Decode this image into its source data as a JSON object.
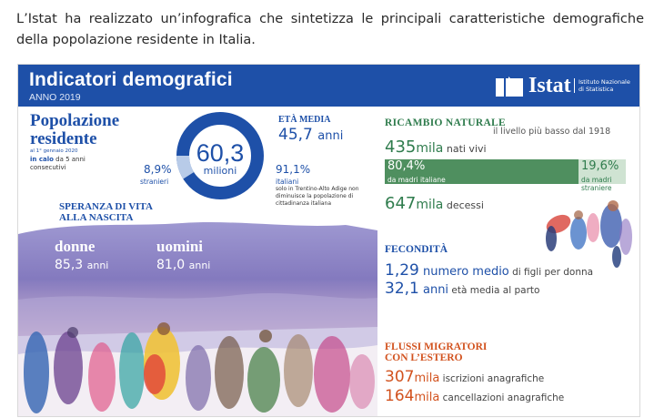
{
  "intro_text": "L’Istat ha realizzato un’infografica che sintetizza le principali caratteristiche demografiche della popolazione residente in Italia.",
  "header": {
    "title": "Indicatori demografici",
    "subtitle": "ANNO 2019",
    "logo_word": "Istat",
    "logo_institute": "Istituto Nazionale di Statistica"
  },
  "popolazione": {
    "title_line1": "Popolazione",
    "title_line2": "residente",
    "date": "al 1° gennaio 2020",
    "calo_bold": "in calo",
    "calo_rest": " da 5 anni consecutivi",
    "value": "60,3",
    "unit": "milioni",
    "stranieri_pct": "8,9%",
    "stranieri_label": "stranieri",
    "italiani_pct": "91,1%",
    "italiani_label": "italiani",
    "italiani_note": "solo in Trentino-Alto Adige non diminuisce la popolazione di cittadinanza italiana",
    "stranieri_share": 0.089
  },
  "eta_media": {
    "label": "ETÀ MEDIA",
    "value": "45,7",
    "unit": "anni"
  },
  "speranza": {
    "title_line1": "SPERANZA DI VITA",
    "title_line2": "ALLA NASCITA",
    "donne_label": "donne",
    "donne_value": "85,3",
    "donne_unit": "anni",
    "uomini_label": "uomini",
    "uomini_value": "81,0",
    "uomini_unit": "anni"
  },
  "ricambio": {
    "title": "RICAMBIO NATURALE",
    "note": "il livello più basso dal 1918",
    "nati_value": "435",
    "nati_unit": "mila",
    "nati_text": " nati vivi",
    "madri_italiane_pct": "80,4%",
    "madri_italiane_label": "da madri italiane",
    "madri_straniere_pct": "19,6%",
    "madri_straniere_label": "da madri straniere",
    "madri_italiane_share": 0.804,
    "decessi_value": "647",
    "decessi_unit": "mila",
    "decessi_text": " decessi"
  },
  "fecondita": {
    "title": "FECONDITÀ",
    "figli_value": "1,29",
    "figli_mid": " numero medio",
    "figli_text": " di figli per donna",
    "eta_value": "32,1",
    "eta_mid": " anni",
    "eta_text": " età media al parto"
  },
  "flussi": {
    "title_line1": "FLUSSI MIGRATORI",
    "title_line2": "CON L’ESTERO",
    "iscrizioni_value": "307",
    "iscrizioni_unit": "mila",
    "iscrizioni_text": " iscrizioni anagrafiche",
    "cancellazioni_value": "164",
    "cancellazioni_unit": "mila",
    "cancellazioni_text": " cancellazioni anagrafiche"
  },
  "colors": {
    "brand_blue": "#1e50a8",
    "green": "#2f7c4d",
    "orange": "#d2521e"
  }
}
